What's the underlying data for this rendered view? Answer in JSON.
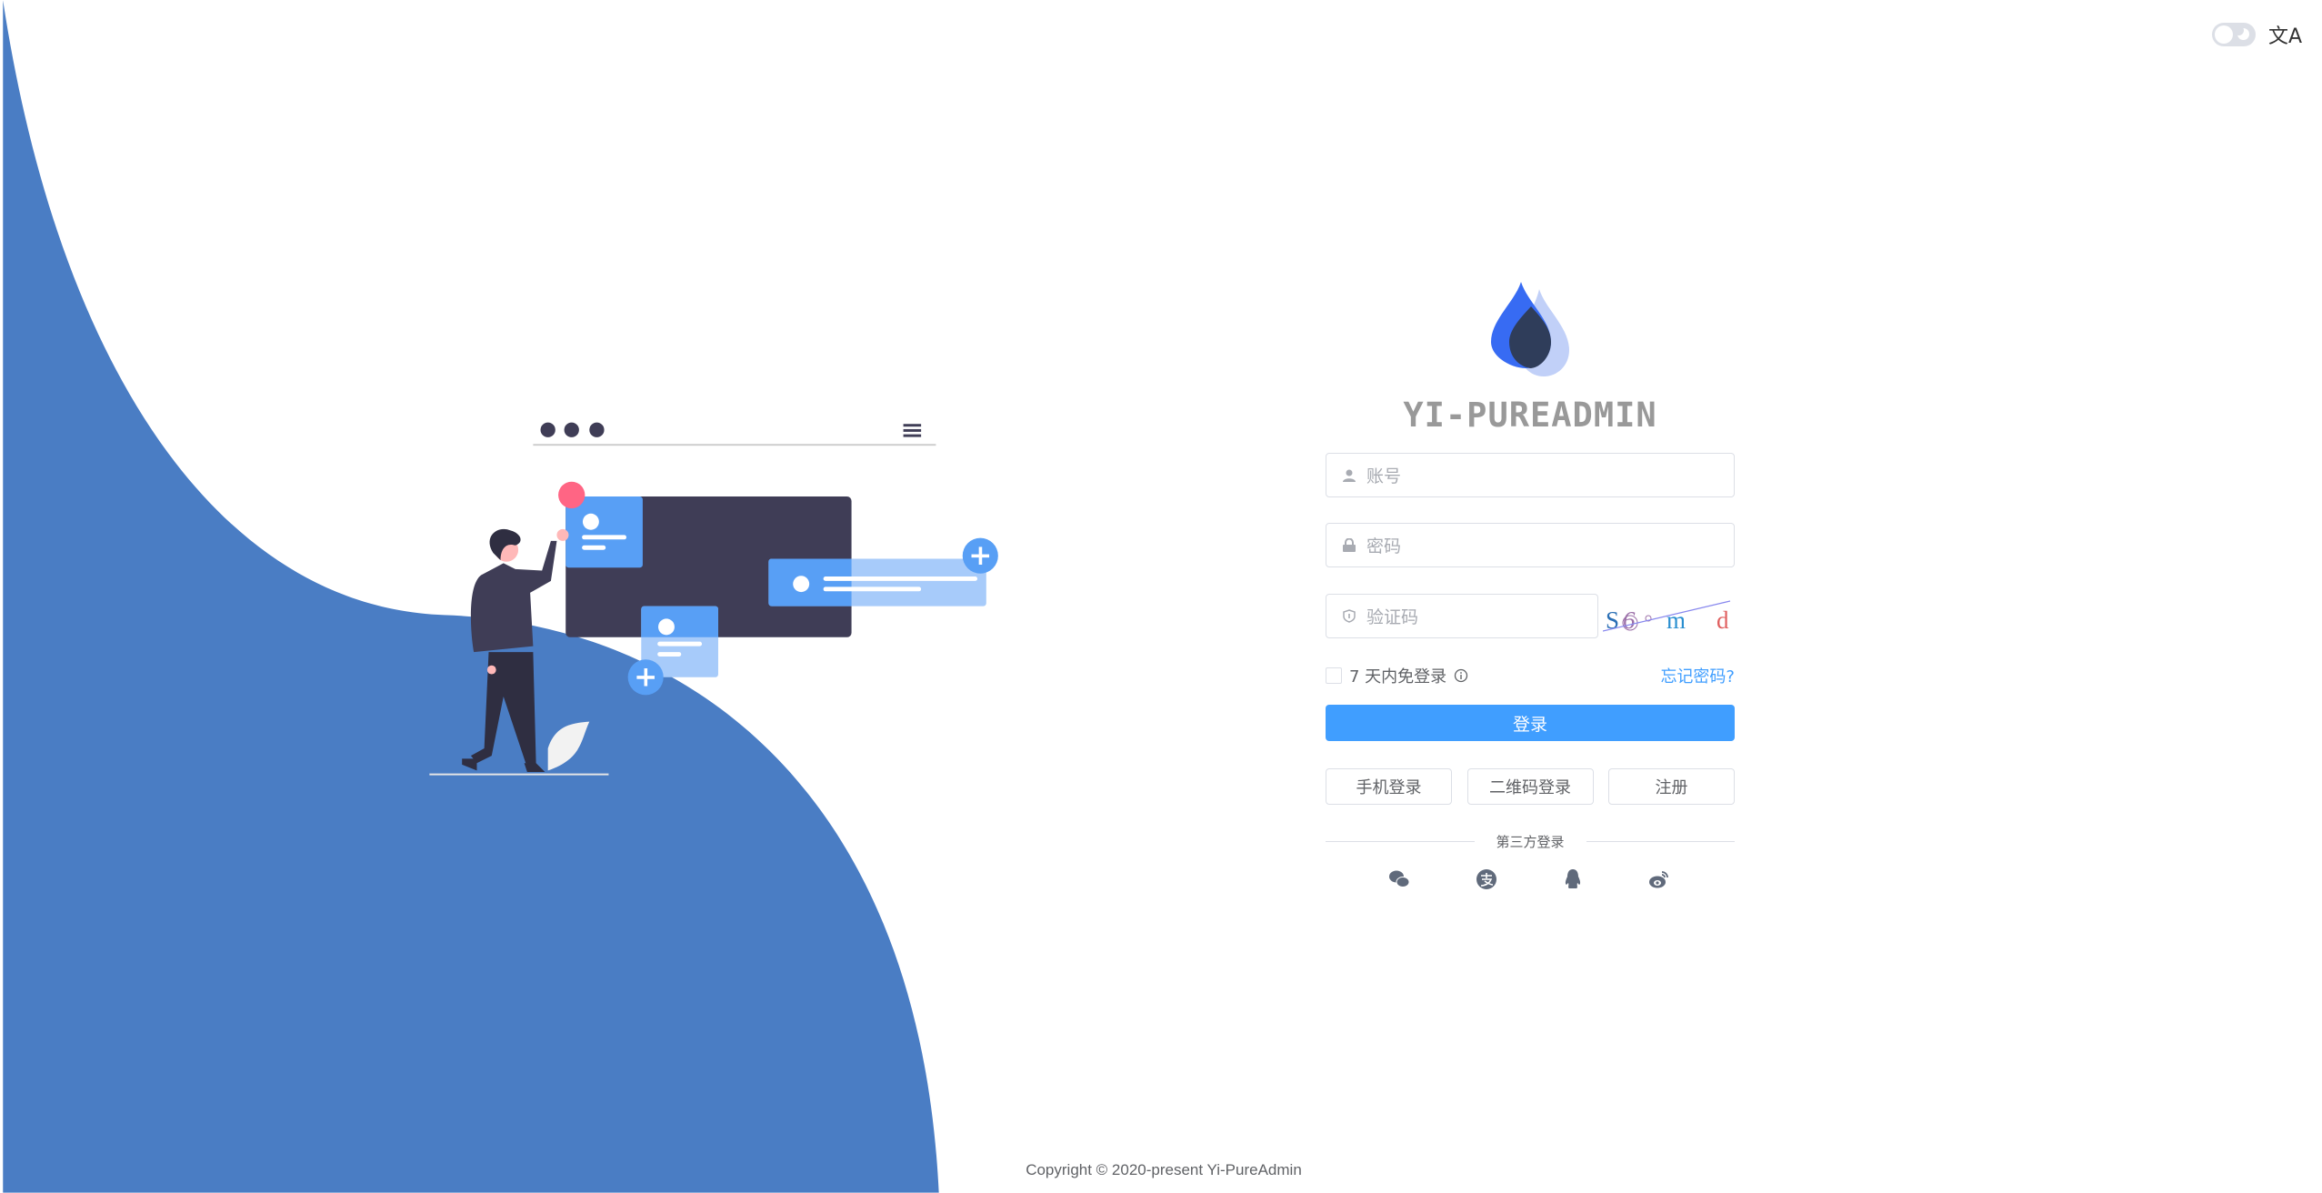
{
  "colors": {
    "wave": "#4a7dc4",
    "primary": "#409eff",
    "dark": "#3f3d56",
    "card": "#589ff5"
  },
  "topbar": {
    "theme_toggle": "dark-mode-toggle",
    "language_icon": "translate-icon",
    "language_glyph": "文A"
  },
  "brand": {
    "title": "YI-PUREADMIN"
  },
  "form": {
    "username_placeholder": "账号",
    "password_placeholder": "密码",
    "captcha_placeholder": "验证码",
    "captcha_text": "S6om d",
    "remember_label": "7 天内免登录",
    "forgot_label": "忘记密码?",
    "login_label": "登录",
    "buttons": [
      {
        "label": "手机登录"
      },
      {
        "label": "二维码登录"
      },
      {
        "label": "注册"
      }
    ],
    "third_party_label": "第三方登录",
    "third_party_icons": [
      "wechat-icon",
      "alipay-icon",
      "qq-icon",
      "weibo-icon"
    ]
  },
  "footer": {
    "copyright": "Copyright © 2020-present Yi-PureAdmin"
  }
}
